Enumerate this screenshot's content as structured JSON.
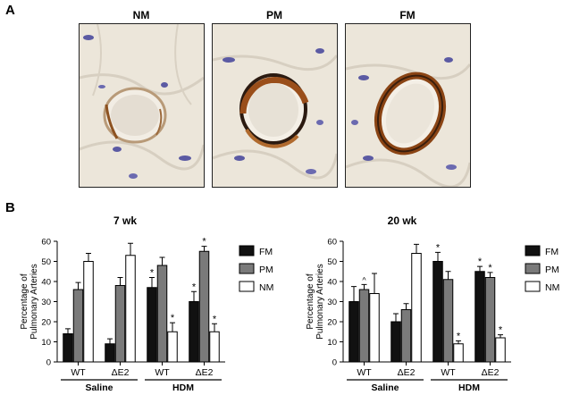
{
  "panels": {
    "a": {
      "letter": "A"
    },
    "b": {
      "letter": "B"
    }
  },
  "micrographs": [
    {
      "label": "NM",
      "stain": "weak",
      "vessel": "small"
    },
    {
      "label": "PM",
      "stain": "partial",
      "vessel": "round"
    },
    {
      "label": "FM",
      "stain": "full",
      "vessel": "ring"
    }
  ],
  "colors": {
    "FM": "#111111",
    "PM": "#7a7a7a",
    "NM": "#ffffff",
    "stain_brown": "#9a4e1a",
    "nuclei_blue": "#5b5aa3",
    "tissue_bg": "#eae4d8"
  },
  "chart_data": [
    {
      "type": "bar",
      "title": "7 wk",
      "ylabel": "Percentage of Pulmonary Arteries",
      "ylim": [
        0,
        60
      ],
      "yticks": [
        0,
        10,
        20,
        30,
        40,
        50,
        60
      ],
      "categories": [
        "WT",
        "ΔE2",
        "WT",
        "ΔE2"
      ],
      "groups": [
        {
          "label": "Saline",
          "categories": [
            0,
            1
          ]
        },
        {
          "label": "HDM",
          "categories": [
            2,
            3
          ]
        }
      ],
      "series": [
        {
          "name": "FM",
          "values": [
            14,
            9,
            37,
            30
          ],
          "errors": [
            2.5,
            2.5,
            5,
            5
          ],
          "marks": [
            "",
            "",
            "*",
            "*"
          ]
        },
        {
          "name": "PM",
          "values": [
            36,
            38,
            48,
            55
          ],
          "errors": [
            3.5,
            4,
            4,
            2.5
          ],
          "marks": [
            "",
            "",
            "",
            "*"
          ]
        },
        {
          "name": "NM",
          "values": [
            50,
            53,
            15,
            15
          ],
          "errors": [
            4,
            6,
            4.5,
            4
          ],
          "marks": [
            "",
            "",
            "*",
            "*"
          ]
        }
      ],
      "legend": "right"
    },
    {
      "type": "bar",
      "title": "20 wk",
      "ylabel": "Percentage of Pulmonary Arteries",
      "ylim": [
        0,
        60
      ],
      "yticks": [
        0,
        10,
        20,
        30,
        40,
        50,
        60
      ],
      "categories": [
        "WT",
        "ΔE2",
        "WT",
        "ΔE2"
      ],
      "groups": [
        {
          "label": "Saline",
          "categories": [
            0,
            1
          ]
        },
        {
          "label": "HDM",
          "categories": [
            2,
            3
          ]
        }
      ],
      "series": [
        {
          "name": "FM",
          "values": [
            30,
            20,
            50,
            45
          ],
          "errors": [
            7.5,
            4,
            4.5,
            2.5
          ],
          "marks": [
            "",
            "",
            "*",
            "*"
          ]
        },
        {
          "name": "PM",
          "values": [
            36,
            26,
            41,
            42
          ],
          "errors": [
            2.5,
            3,
            4,
            2.5
          ],
          "marks": [
            "^",
            "",
            "",
            "*"
          ]
        },
        {
          "name": "NM",
          "values": [
            34,
            54,
            9,
            12
          ],
          "errors": [
            10,
            4.5,
            1.5,
            1.5
          ],
          "marks": [
            "",
            "",
            "*",
            "*"
          ]
        }
      ],
      "legend": "right"
    }
  ]
}
